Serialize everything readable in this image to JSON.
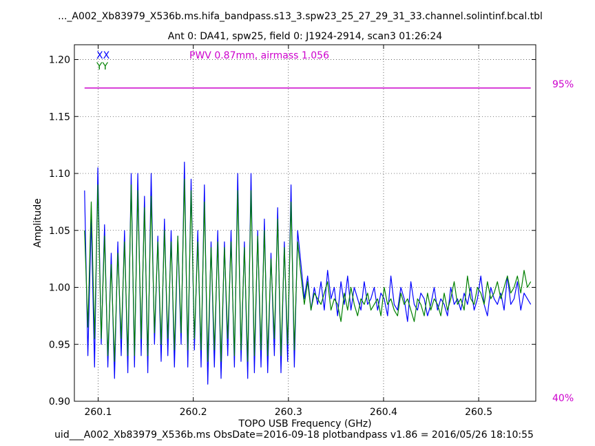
{
  "chart_data": {
    "type": "line",
    "title": "..._A002_Xb83979_X536b.ms.hifa_bandpass.s13_3.spw23_25_27_29_31_33.channel.solintinf.bcal.tbl",
    "subtitle": "Ant 0: DA41,  spw25,  field 0: J1924-2914,  scan3  01:26:24",
    "xlabel": "TOPO USB Frequency (GHz)",
    "ylabel": "Amplitude",
    "footer": "uid___A002_Xb83979_X536b.ms  ObsDate=2016-09-18   plotbandpass v1.86 = 2016/05/26 18:10:55",
    "xlim": [
      260.075,
      260.56
    ],
    "ylim": [
      0.9,
      1.213
    ],
    "grid": true,
    "xticks": [
      "260.1",
      "260.2",
      "260.3",
      "260.4",
      "260.5"
    ],
    "xtick_values": [
      260.1,
      260.2,
      260.3,
      260.4,
      260.5
    ],
    "yticks": [
      "0.90",
      "0.95",
      "1.00",
      "1.05",
      "1.10",
      "1.15",
      "1.20"
    ],
    "ytick_values": [
      0.9,
      0.95,
      1.0,
      1.05,
      1.1,
      1.15,
      1.2
    ],
    "legend_placement": "top-left",
    "series": [
      {
        "name": "XX",
        "color": "#0000ff",
        "x": [
          260.0857,
          260.0892,
          260.0927,
          260.0962,
          260.0997,
          260.1032,
          260.1067,
          260.1102,
          260.1137,
          260.1172,
          260.1207,
          260.1242,
          260.1277,
          260.1312,
          260.1347,
          260.1382,
          260.1417,
          260.1452,
          260.1487,
          260.1522,
          260.1557,
          260.1592,
          260.1627,
          260.1662,
          260.1697,
          260.1732,
          260.1767,
          260.1802,
          260.1837,
          260.1872,
          260.1907,
          260.1942,
          260.1977,
          260.2012,
          260.2047,
          260.2082,
          260.2117,
          260.2152,
          260.2187,
          260.2222,
          260.2257,
          260.2292,
          260.2327,
          260.2362,
          260.2397,
          260.2432,
          260.2467,
          260.2502,
          260.2537,
          260.2572,
          260.2607,
          260.2642,
          260.2677,
          260.2712,
          260.2747,
          260.2782,
          260.2817,
          260.2852,
          260.2887,
          260.2922,
          260.2957,
          260.2992,
          260.3027,
          260.3062,
          260.3097,
          260.3132,
          260.3167,
          260.3202,
          260.3237,
          260.3272,
          260.3307,
          260.3342,
          260.3377,
          260.3412,
          260.3447,
          260.3482,
          260.3517,
          260.3552,
          260.3587,
          260.3622,
          260.3657,
          260.3692,
          260.3727,
          260.3762,
          260.3797,
          260.3832,
          260.3867,
          260.3902,
          260.3937,
          260.3972,
          260.4007,
          260.4042,
          260.4077,
          260.4112,
          260.4147,
          260.4182,
          260.4217,
          260.4252,
          260.4287,
          260.4322,
          260.4357,
          260.4392,
          260.4427,
          260.4462,
          260.4497,
          260.4532,
          260.4567,
          260.4602,
          260.4637,
          260.4672,
          260.4707,
          260.4742,
          260.4777,
          260.4812,
          260.4847,
          260.4882,
          260.4917,
          260.4952,
          260.4987,
          260.5022,
          260.5057,
          260.5092,
          260.5127,
          260.5162,
          260.5197,
          260.5232,
          260.5267,
          260.5302,
          260.5337,
          260.5372,
          260.5407,
          260.5442,
          260.5477,
          260.5512,
          260.5547
        ],
        "values": [
          1.085,
          0.94,
          1.06,
          0.93,
          1.105,
          0.95,
          1.055,
          0.93,
          1.03,
          0.92,
          1.04,
          0.94,
          1.05,
          0.925,
          1.1,
          0.93,
          1.1,
          0.94,
          1.08,
          0.925,
          1.1,
          0.95,
          1.045,
          0.935,
          1.06,
          0.94,
          1.05,
          0.93,
          1.045,
          0.95,
          1.11,
          0.93,
          1.095,
          0.945,
          1.05,
          0.93,
          1.09,
          0.915,
          1.04,
          0.93,
          1.05,
          0.92,
          1.04,
          0.94,
          1.05,
          0.93,
          1.1,
          0.935,
          1.04,
          0.92,
          1.1,
          0.925,
          1.05,
          0.93,
          1.06,
          0.925,
          1.03,
          0.94,
          1.07,
          0.925,
          1.04,
          0.935,
          1.09,
          0.93,
          1.05,
          1.02,
          0.99,
          1.01,
          0.98,
          1.0,
          0.985,
          1.005,
          0.98,
          1.015,
          0.99,
          1.0,
          0.975,
          1.005,
          0.985,
          1.01,
          0.98,
          1.0,
          0.99,
          0.98,
          1.005,
          0.985,
          0.99,
          1.0,
          0.98,
          0.995,
          0.99,
          0.975,
          1.01,
          0.985,
          0.98,
          1.0,
          0.99,
          0.97,
          1.005,
          0.985,
          0.98,
          0.995,
          0.99,
          0.975,
          0.985,
          1.0,
          0.98,
          0.99,
          0.985,
          0.975,
          1.0,
          0.985,
          0.99,
          0.98,
          0.995,
          0.985,
          1.0,
          0.98,
          0.99,
          1.01,
          0.985,
          0.975,
          1.0,
          0.99,
          0.985,
          0.995,
          0.98,
          1.01,
          0.985,
          0.99,
          1.005,
          0.98,
          0.995,
          0.99,
          0.985
        ]
      },
      {
        "name": "YY",
        "color": "#008000",
        "x": [
          260.0857,
          260.0892,
          260.0927,
          260.0962,
          260.0997,
          260.1032,
          260.1067,
          260.1102,
          260.1137,
          260.1172,
          260.1207,
          260.1242,
          260.1277,
          260.1312,
          260.1347,
          260.1382,
          260.1417,
          260.1452,
          260.1487,
          260.1522,
          260.1557,
          260.1592,
          260.1627,
          260.1662,
          260.1697,
          260.1732,
          260.1767,
          260.1802,
          260.1837,
          260.1872,
          260.1907,
          260.1942,
          260.1977,
          260.2012,
          260.2047,
          260.2082,
          260.2117,
          260.2152,
          260.2187,
          260.2222,
          260.2257,
          260.2292,
          260.2327,
          260.2362,
          260.2397,
          260.2432,
          260.2467,
          260.2502,
          260.2537,
          260.2572,
          260.2607,
          260.2642,
          260.2677,
          260.2712,
          260.2747,
          260.2782,
          260.2817,
          260.2852,
          260.2887,
          260.2922,
          260.2957,
          260.2992,
          260.3027,
          260.3062,
          260.3097,
          260.3132,
          260.3167,
          260.3202,
          260.3237,
          260.3272,
          260.3307,
          260.3342,
          260.3377,
          260.3412,
          260.3447,
          260.3482,
          260.3517,
          260.3552,
          260.3587,
          260.3622,
          260.3657,
          260.3692,
          260.3727,
          260.3762,
          260.3797,
          260.3832,
          260.3867,
          260.3902,
          260.3937,
          260.3972,
          260.4007,
          260.4042,
          260.4077,
          260.4112,
          260.4147,
          260.4182,
          260.4217,
          260.4252,
          260.4287,
          260.4322,
          260.4357,
          260.4392,
          260.4427,
          260.4462,
          260.4497,
          260.4532,
          260.4567,
          260.4602,
          260.4637,
          260.4672,
          260.4707,
          260.4742,
          260.4777,
          260.4812,
          260.4847,
          260.4882,
          260.4917,
          260.4952,
          260.4987,
          260.5022,
          260.5057,
          260.5092,
          260.5127,
          260.5162,
          260.5197,
          260.5232,
          260.5267,
          260.5302,
          260.5337,
          260.5372,
          260.5407,
          260.5442,
          260.5477,
          260.5512,
          260.5547
        ],
        "values": [
          1.05,
          0.965,
          1.075,
          0.955,
          1.09,
          0.955,
          1.045,
          0.94,
          1.02,
          0.935,
          1.03,
          0.955,
          1.04,
          0.94,
          1.09,
          0.94,
          1.085,
          0.955,
          1.07,
          0.94,
          1.08,
          0.96,
          1.04,
          0.95,
          1.05,
          0.955,
          1.04,
          0.945,
          1.045,
          0.96,
          1.095,
          0.945,
          1.085,
          0.955,
          1.04,
          0.945,
          1.075,
          0.935,
          1.035,
          0.945,
          1.04,
          0.935,
          1.035,
          0.955,
          1.04,
          0.94,
          1.085,
          0.945,
          1.035,
          0.935,
          1.085,
          0.94,
          1.045,
          0.945,
          1.05,
          0.94,
          1.025,
          0.955,
          1.06,
          0.94,
          1.035,
          0.95,
          1.075,
          0.945,
          1.04,
          1.01,
          0.985,
          1.005,
          0.98,
          0.995,
          0.99,
          0.985,
          0.995,
          1.005,
          0.98,
          0.99,
          0.985,
          0.97,
          0.995,
          0.98,
          1.0,
          0.985,
          0.975,
          0.99,
          0.985,
          0.995,
          0.98,
          0.985,
          0.99,
          0.975,
          1.0,
          0.985,
          0.99,
          0.98,
          0.975,
          0.995,
          0.985,
          0.99,
          0.98,
          0.97,
          0.99,
          0.985,
          0.975,
          0.995,
          0.98,
          0.99,
          0.985,
          0.975,
          0.995,
          0.98,
          0.99,
          1.005,
          0.985,
          0.99,
          0.98,
          1.01,
          0.99,
          0.985,
          1.0,
          0.995,
          0.985,
          1.005,
          0.99,
          0.995,
          1.005,
          0.99,
          1.0,
          1.01,
          0.995,
          1.0,
          1.01,
          0.995,
          1.015,
          1.0,
          1.005
        ]
      }
    ],
    "atm_line": {
      "color": "#cc00cc",
      "y": 1.175,
      "x_start": 260.0857,
      "x_end": 260.5547
    },
    "annotations": {
      "pwv": "PWV 0.87mm, airmass 1.056",
      "right_top": "95%",
      "right_bottom": "40%"
    }
  }
}
